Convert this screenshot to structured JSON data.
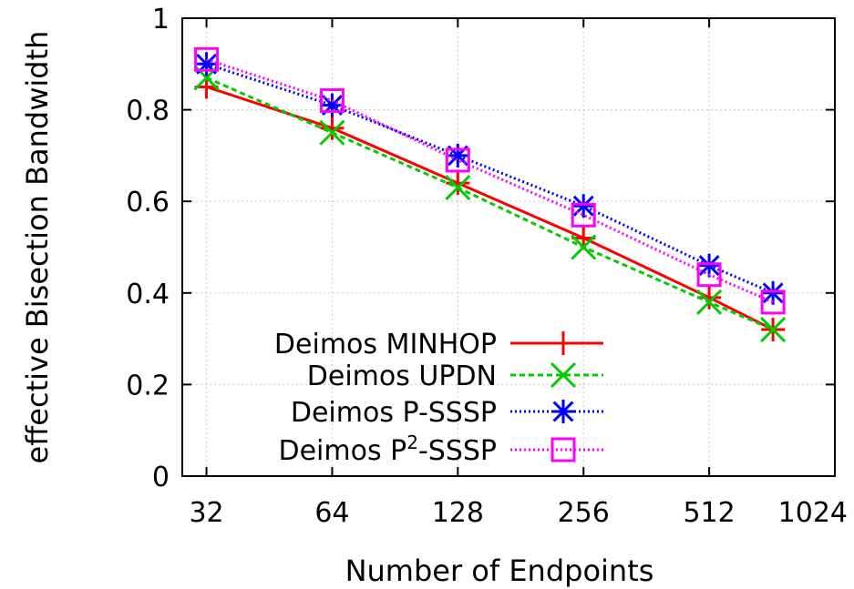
{
  "chart_data": {
    "type": "line",
    "xlabel": "Number of Endpoints",
    "ylabel": "effective Bisection Bandwidth",
    "xscale": "log2",
    "xlim": [
      28,
      1024
    ],
    "ylim": [
      0,
      1
    ],
    "x_ticks": [
      32,
      64,
      128,
      256,
      512,
      1024
    ],
    "x_tick_labels": [
      "32",
      "64",
      "128",
      "256",
      "512",
      "1024"
    ],
    "y_ticks": [
      0,
      0.2,
      0.4,
      0.6,
      0.8,
      1
    ],
    "y_tick_labels": [
      "0",
      "0.2",
      "0.4",
      "0.6",
      "0.8",
      "1"
    ],
    "grid": true,
    "legend_position": "bottom-left",
    "series": [
      {
        "name": "Deimos MINHOP",
        "color": "#ff0000",
        "marker": "plus",
        "dash": "solid",
        "x": [
          32,
          64,
          128,
          256,
          512,
          728
        ],
        "y": [
          0.85,
          0.76,
          0.64,
          0.52,
          0.39,
          0.32
        ]
      },
      {
        "name": "Deimos UPDN",
        "color": "#00cc00",
        "marker": "cross",
        "dash": "dashed",
        "x": [
          32,
          64,
          128,
          256,
          512,
          728
        ],
        "y": [
          0.87,
          0.75,
          0.63,
          0.5,
          0.38,
          0.32
        ]
      },
      {
        "name": "Deimos P-SSSP",
        "color": "#0000ff",
        "marker": "star",
        "dash": "dotted",
        "x": [
          32,
          64,
          128,
          256,
          512,
          728
        ],
        "y": [
          0.9,
          0.81,
          0.7,
          0.59,
          0.46,
          0.4
        ]
      },
      {
        "name_prefix": "Deimos P",
        "name_sup": "2",
        "name_suffix": "-SSSP",
        "color": "#ff00ff",
        "marker": "square",
        "dash": "dotted",
        "x": [
          32,
          64,
          128,
          256,
          512,
          728
        ],
        "y": [
          0.91,
          0.82,
          0.69,
          0.57,
          0.44,
          0.38
        ]
      }
    ]
  }
}
